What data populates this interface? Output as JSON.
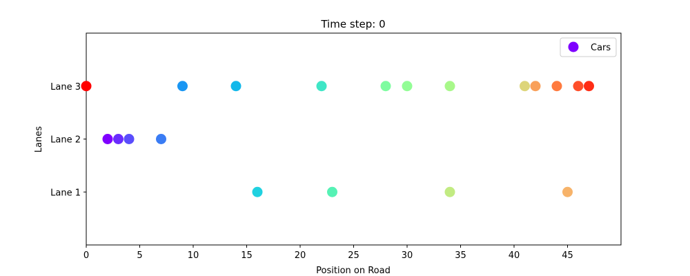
{
  "chart_data": {
    "type": "scatter",
    "title": "Time step: 0",
    "xlabel": "Position on Road",
    "ylabel": "Lanes",
    "xlim": [
      0,
      50
    ],
    "ylim": [
      0,
      4
    ],
    "x_ticks": [
      0,
      5,
      10,
      15,
      20,
      25,
      30,
      35,
      40,
      45
    ],
    "y_ticks": [
      {
        "value": 1,
        "label": "Lane 1"
      },
      {
        "value": 2,
        "label": "Lane 2"
      },
      {
        "value": 3,
        "label": "Lane 3"
      }
    ],
    "grid": false,
    "legend": {
      "placement": "top-right",
      "entries": [
        {
          "label": "Cars",
          "color": "#7f00ff"
        }
      ]
    },
    "colormap": "rainbow",
    "points": [
      {
        "x": 0,
        "y": 3,
        "color": "#ff0000"
      },
      {
        "x": 2,
        "y": 2,
        "color": "#7f00ff"
      },
      {
        "x": 3,
        "y": 2,
        "color": "#6a2cfe"
      },
      {
        "x": 4,
        "y": 2,
        "color": "#5a4dfc"
      },
      {
        "x": 7,
        "y": 2,
        "color": "#3a7cf4"
      },
      {
        "x": 9,
        "y": 3,
        "color": "#1996f3"
      },
      {
        "x": 14,
        "y": 3,
        "color": "#12b8ea"
      },
      {
        "x": 16,
        "y": 1,
        "color": "#20d1e0"
      },
      {
        "x": 22,
        "y": 3,
        "color": "#3fe6c6"
      },
      {
        "x": 23,
        "y": 1,
        "color": "#56f2b5"
      },
      {
        "x": 28,
        "y": 3,
        "color": "#7efca0"
      },
      {
        "x": 30,
        "y": 3,
        "color": "#92fd95"
      },
      {
        "x": 34,
        "y": 3,
        "color": "#a8f88a"
      },
      {
        "x": 34,
        "y": 1,
        "color": "#c2eb82"
      },
      {
        "x": 41,
        "y": 3,
        "color": "#ddd57a"
      },
      {
        "x": 42,
        "y": 3,
        "color": "#f9a05a"
      },
      {
        "x": 44,
        "y": 3,
        "color": "#ff7a3e"
      },
      {
        "x": 45,
        "y": 1,
        "color": "#f7b36a"
      },
      {
        "x": 46,
        "y": 3,
        "color": "#ff4f2a"
      },
      {
        "x": 47,
        "y": 3,
        "color": "#ff2e16"
      }
    ]
  }
}
